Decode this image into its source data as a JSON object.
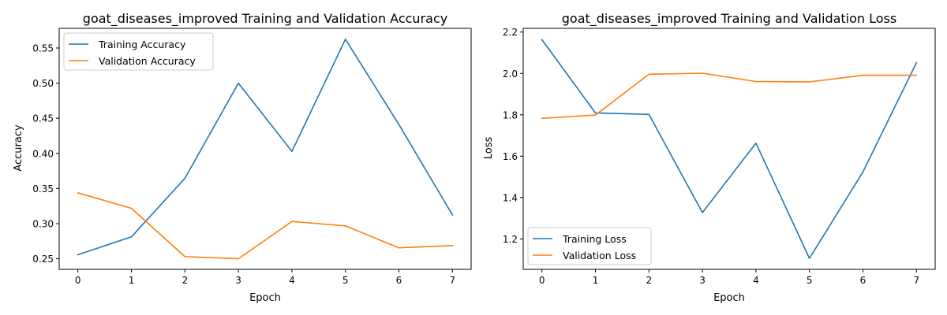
{
  "chart_data": [
    {
      "type": "line",
      "title": "goat_diseases_improved Training and Validation Accuracy",
      "xlabel": "Epoch",
      "ylabel": "Accuracy",
      "x": [
        0,
        1,
        2,
        3,
        4,
        5,
        6,
        7
      ],
      "xticks": [
        0,
        1,
        2,
        3,
        4,
        5,
        6,
        7
      ],
      "xlim": [
        -0.35,
        7.35
      ],
      "yticks": [
        0.25,
        0.3,
        0.35,
        0.4,
        0.45,
        0.5,
        0.55
      ],
      "ytick_labels": [
        "0.25",
        "0.30",
        "0.35",
        "0.40",
        "0.45",
        "0.50",
        "0.55"
      ],
      "ylim": [
        0.235,
        0.578
      ],
      "grid": false,
      "legend": "upper-left",
      "series": [
        {
          "name": "Training Accuracy",
          "color": "#1f77b4",
          "values": [
            0.2557,
            0.2812,
            0.3646,
            0.5,
            0.4028,
            0.5625,
            0.441,
            0.3125
          ]
        },
        {
          "name": "Validation Accuracy",
          "color": "#ff7f0e",
          "values": [
            0.3438,
            0.3219,
            0.2531,
            0.25,
            0.3031,
            0.2969,
            0.2656,
            0.2688
          ]
        }
      ]
    },
    {
      "type": "line",
      "title": "goat_diseases_improved Training and Validation Loss",
      "xlabel": "Epoch",
      "ylabel": "Loss",
      "x": [
        0,
        1,
        2,
        3,
        4,
        5,
        6,
        7
      ],
      "xticks": [
        0,
        1,
        2,
        3,
        4,
        5,
        6,
        7
      ],
      "xlim": [
        -0.35,
        7.35
      ],
      "yticks": [
        1.2,
        1.4,
        1.6,
        1.8,
        2.0,
        2.2
      ],
      "ytick_labels": [
        "1.2",
        "1.4",
        "1.6",
        "1.8",
        "2.0",
        "2.2"
      ],
      "ylim": [
        1.053,
        2.218
      ],
      "grid": false,
      "legend": "lower-left",
      "series": [
        {
          "name": "Training Loss",
          "color": "#1f77b4",
          "values": [
            2.163,
            1.809,
            1.802,
            1.327,
            1.663,
            1.106,
            1.524,
            2.052
          ]
        },
        {
          "name": "Validation Loss",
          "color": "#ff7f0e",
          "values": [
            1.783,
            1.799,
            1.996,
            2.001,
            1.961,
            1.959,
            1.991,
            1.991
          ]
        }
      ]
    }
  ]
}
